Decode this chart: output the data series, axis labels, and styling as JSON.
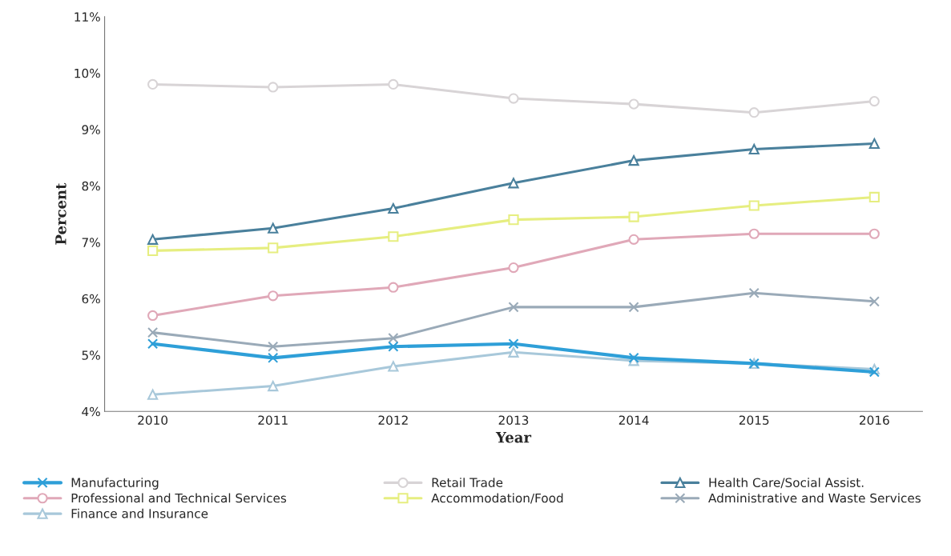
{
  "chart_data": {
    "type": "line",
    "xlabel": "Year",
    "ylabel": "Percent",
    "x": [
      2010,
      2011,
      2012,
      2013,
      2014,
      2015,
      2016
    ],
    "xlim": [
      2009.6,
      2016.4
    ],
    "xticks": [
      2010,
      2011,
      2012,
      2013,
      2014,
      2015,
      2016
    ],
    "ylim": [
      4,
      11
    ],
    "yticks": [
      {
        "value": 4,
        "label": "4%"
      },
      {
        "value": 5,
        "label": "5%"
      },
      {
        "value": 6,
        "label": "6%"
      },
      {
        "value": 7,
        "label": "7%"
      },
      {
        "value": 8,
        "label": "8%"
      },
      {
        "value": 9,
        "label": "9%"
      },
      {
        "value": 10,
        "label": "10%"
      },
      {
        "value": 11,
        "label": "11%"
      }
    ],
    "grid": false,
    "legend": "bottom",
    "series": [
      {
        "name": "Manufacturing",
        "color": "#2e9fd8",
        "marker": "cross",
        "values": [
          5.2,
          4.95,
          5.15,
          5.2,
          4.95,
          4.85,
          4.7
        ]
      },
      {
        "name": "Professional and Technical Services",
        "color": "#e0a8b8",
        "marker": "circle",
        "values": [
          5.7,
          6.05,
          6.2,
          6.55,
          7.05,
          7.15,
          7.15
        ]
      },
      {
        "name": "Finance and Insurance",
        "color": "#a8c8da",
        "marker": "triangle",
        "values": [
          4.3,
          4.45,
          4.8,
          5.05,
          4.9,
          4.85,
          4.75
        ]
      },
      {
        "name": "Retail Trade",
        "color": "#d8d4d6",
        "marker": "circle",
        "values": [
          9.8,
          9.75,
          9.8,
          9.55,
          9.45,
          9.3,
          9.5
        ]
      },
      {
        "name": "Accommodation/Food",
        "color": "#e6ee80",
        "marker": "square",
        "values": [
          6.85,
          6.9,
          7.1,
          7.4,
          7.45,
          7.65,
          7.8
        ]
      },
      {
        "name": "Health Care/Social Assist.",
        "color": "#4a809c",
        "marker": "triangle",
        "values": [
          7.05,
          7.25,
          7.6,
          8.05,
          8.45,
          8.65,
          8.75
        ]
      },
      {
        "name": "Administrative and Waste Services",
        "color": "#9aaab8",
        "marker": "cross",
        "values": [
          5.4,
          5.15,
          5.3,
          5.85,
          5.85,
          6.1,
          5.95
        ]
      }
    ]
  }
}
